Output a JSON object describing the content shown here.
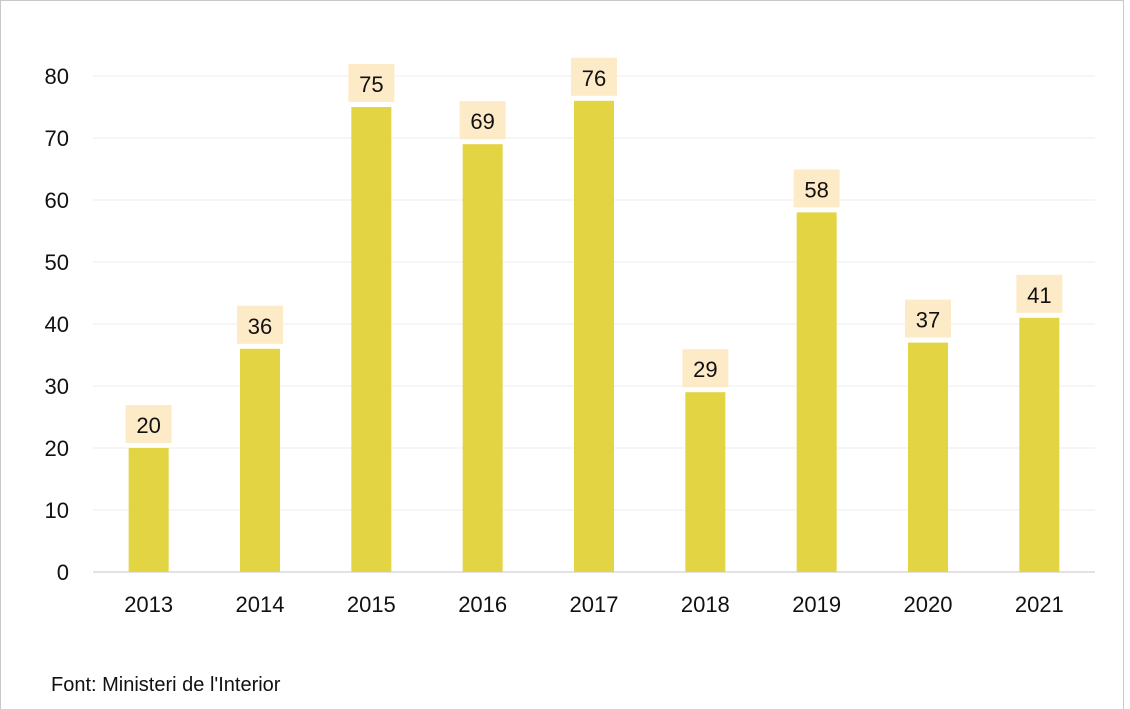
{
  "chart_data": {
    "type": "bar",
    "categories": [
      "2013",
      "2014",
      "2015",
      "2016",
      "2017",
      "2018",
      "2019",
      "2020",
      "2021"
    ],
    "values": [
      20,
      36,
      75,
      69,
      76,
      29,
      58,
      37,
      41
    ],
    "data_labels": [
      "20",
      "36",
      "75",
      "69",
      "76",
      "29",
      "58",
      "37",
      "41"
    ],
    "y_ticks": [
      "0",
      "10",
      "20",
      "30",
      "40",
      "50",
      "60",
      "70",
      "80"
    ],
    "ylim": [
      0,
      80
    ],
    "grid": true,
    "legend": "none",
    "bar_color": "#e2d442",
    "label_bg_color": "#fdebc8",
    "grid_color": "#ececec"
  },
  "source": "Font: Ministeri de l'Interior"
}
